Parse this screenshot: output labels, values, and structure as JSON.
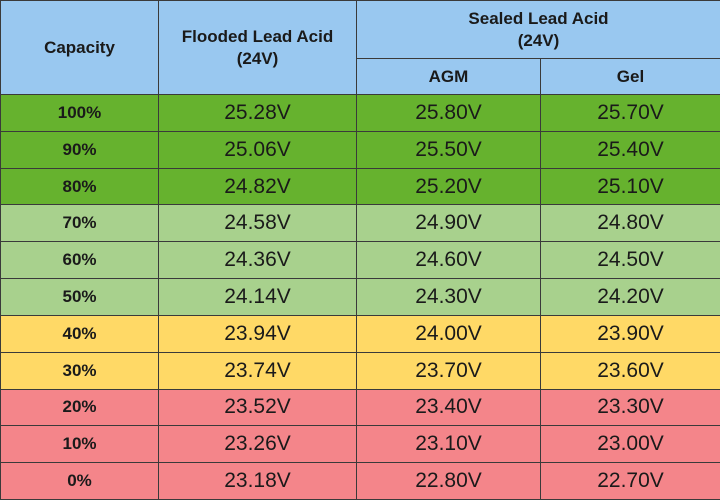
{
  "table": {
    "headers": {
      "capacity": "Capacity",
      "flooded": "Flooded Lead Acid",
      "flooded_voltage": "(24V)",
      "sealed": "Sealed Lead Acid",
      "sealed_voltage": "(24V)",
      "agm": "AGM",
      "gel": "Gel"
    },
    "rows": [
      {
        "capacity": "100%",
        "flooded": "25.28V",
        "agm": "25.80V",
        "gel": "25.70V",
        "band": "dark-green"
      },
      {
        "capacity": "90%",
        "flooded": "25.06V",
        "agm": "25.50V",
        "gel": "25.40V",
        "band": "dark-green"
      },
      {
        "capacity": "80%",
        "flooded": "24.82V",
        "agm": "25.20V",
        "gel": "25.10V",
        "band": "dark-green"
      },
      {
        "capacity": "70%",
        "flooded": "24.58V",
        "agm": "24.90V",
        "gel": "24.80V",
        "band": "light-green"
      },
      {
        "capacity": "60%",
        "flooded": "24.36V",
        "agm": "24.60V",
        "gel": "24.50V",
        "band": "light-green"
      },
      {
        "capacity": "50%",
        "flooded": "24.14V",
        "agm": "24.30V",
        "gel": "24.20V",
        "band": "light-green"
      },
      {
        "capacity": "40%",
        "flooded": "23.94V",
        "agm": "24.00V",
        "gel": "23.90V",
        "band": "yellow"
      },
      {
        "capacity": "30%",
        "flooded": "23.74V",
        "agm": "23.70V",
        "gel": "23.60V",
        "band": "yellow"
      },
      {
        "capacity": "20%",
        "flooded": "23.52V",
        "agm": "23.40V",
        "gel": "23.30V",
        "band": "red"
      },
      {
        "capacity": "10%",
        "flooded": "23.26V",
        "agm": "23.10V",
        "gel": "23.00V",
        "band": "red"
      },
      {
        "capacity": "0%",
        "flooded": "23.18V",
        "agm": "22.80V",
        "gel": "22.70V",
        "band": "red"
      }
    ]
  },
  "colors": {
    "header": "#99c8f0",
    "dark-green": "#66b22e",
    "light-green": "#a8d18d",
    "yellow": "#ffd966",
    "red": "#f4858a",
    "border": "#3a3a3a"
  }
}
